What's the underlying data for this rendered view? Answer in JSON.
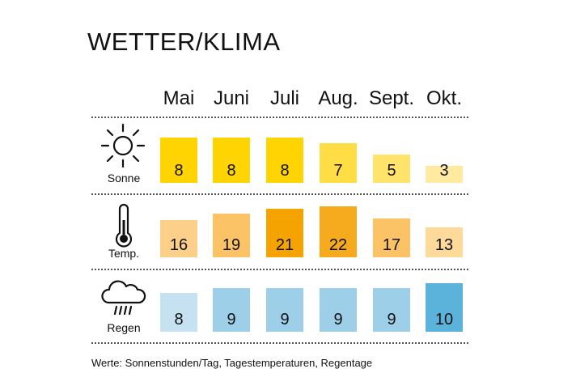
{
  "title": "WETTER/KLIMA",
  "footnote": "Werte: Sonnenstunden/Tag, Tagestemperaturen, Regentage",
  "icons": {
    "sun": "sun-icon",
    "thermometer": "thermometer-icon",
    "rain": "rain-cloud-icon"
  },
  "chart_data": {
    "type": "bar",
    "title": "WETTER/KLIMA",
    "categories": [
      "Mai",
      "Juni",
      "Juli",
      "Aug.",
      "Sept.",
      "Okt."
    ],
    "series": [
      {
        "name": "Sonne",
        "values": [
          8,
          8,
          8,
          7,
          5,
          3
        ],
        "colors": [
          "#ffd400",
          "#ffd400",
          "#ffd400",
          "#ffdd44",
          "#ffe36a",
          "#ffeaa0"
        ]
      },
      {
        "name": "Temp.",
        "values": [
          16,
          19,
          21,
          22,
          17,
          13
        ],
        "colors": [
          "#fdd08a",
          "#fcc366",
          "#f4a300",
          "#f6ab1f",
          "#fcc366",
          "#fdd99a"
        ]
      },
      {
        "name": "Regen",
        "values": [
          8,
          9,
          9,
          9,
          9,
          10
        ],
        "colors": [
          "#c5e1f2",
          "#9ecfe8",
          "#9ecfe8",
          "#9ecfe8",
          "#9ecfe8",
          "#5bb3db"
        ]
      }
    ]
  }
}
